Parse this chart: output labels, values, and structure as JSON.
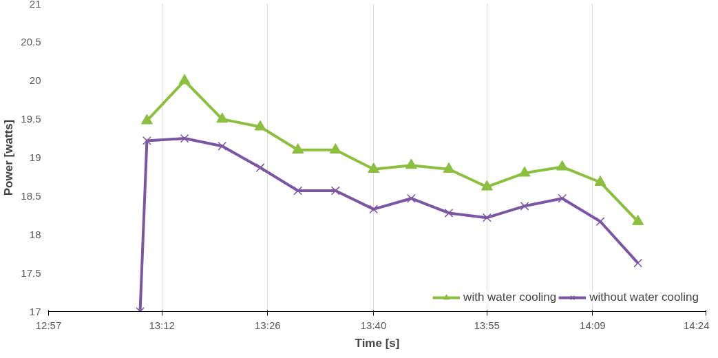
{
  "chart_data": {
    "type": "line",
    "xlabel": "Time [s]",
    "ylabel": "Power [watts]",
    "xlim": [
      12.95,
      14.4
    ],
    "xticks": [
      {
        "value": 12.95,
        "label": "12:57"
      },
      {
        "value": 13.2,
        "label": "13:12"
      },
      {
        "value": 13.4333,
        "label": "13:26"
      },
      {
        "value": 13.6667,
        "label": "13:40"
      },
      {
        "value": 13.9167,
        "label": "13:55"
      },
      {
        "value": 14.15,
        "label": "14:09"
      },
      {
        "value": 14.4,
        "label": "14:24"
      }
    ],
    "ylim": [
      17,
      21
    ],
    "yticks": [
      17,
      17.5,
      18,
      18.5,
      19,
      19.5,
      20,
      20.5,
      21
    ],
    "grid": "x",
    "legend": "bottom right",
    "series": [
      {
        "name": "with water cooling",
        "color": "#8cbf3f",
        "marker": "triangle",
        "x": [
          13.167,
          13.25,
          13.333,
          13.417,
          13.5,
          13.583,
          13.667,
          13.75,
          13.833,
          13.917,
          14.0,
          14.083,
          14.167,
          14.25
        ],
        "values": [
          19.48,
          20.0,
          19.5,
          19.4,
          19.1,
          19.1,
          18.85,
          18.9,
          18.85,
          18.62,
          18.8,
          18.88,
          18.68,
          18.17
        ]
      },
      {
        "name": "without water cooling",
        "color": "#7a56a3",
        "marker": "cross",
        "x": [
          13.152,
          13.167,
          13.25,
          13.333,
          13.417,
          13.5,
          13.583,
          13.667,
          13.75,
          13.833,
          13.917,
          14.0,
          14.083,
          14.167,
          14.25
        ],
        "values": [
          17.0,
          19.22,
          19.25,
          19.15,
          18.87,
          18.57,
          18.57,
          18.33,
          18.47,
          18.28,
          18.22,
          18.37,
          18.47,
          18.17,
          17.63
        ]
      }
    ]
  }
}
